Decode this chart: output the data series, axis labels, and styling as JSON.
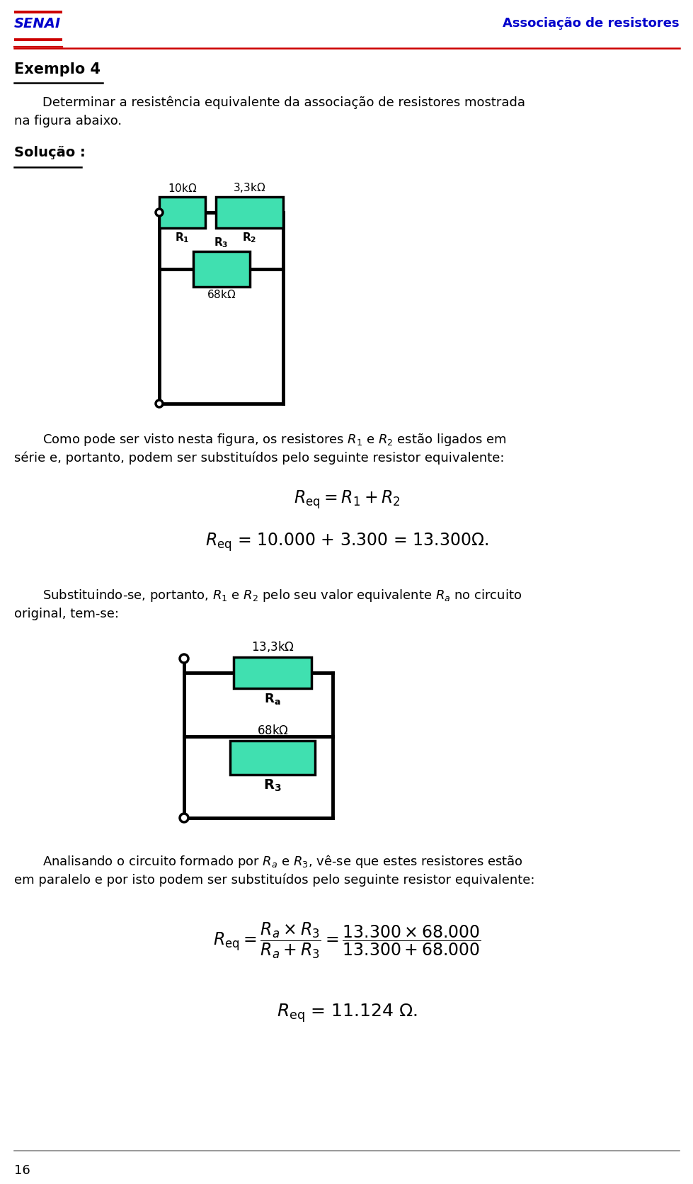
{
  "bg_color": "#ffffff",
  "page_width": 9.6,
  "page_height": 16.44,
  "header_left_text": "SENAI",
  "header_right_text": "Associação de resistores",
  "header_left_color": "#0000cc",
  "header_right_color": "#0000cc",
  "resistor_fill": "#40e0b0",
  "resistor_edge": "#000000",
  "lw": 3.5,
  "footer_text": "16"
}
